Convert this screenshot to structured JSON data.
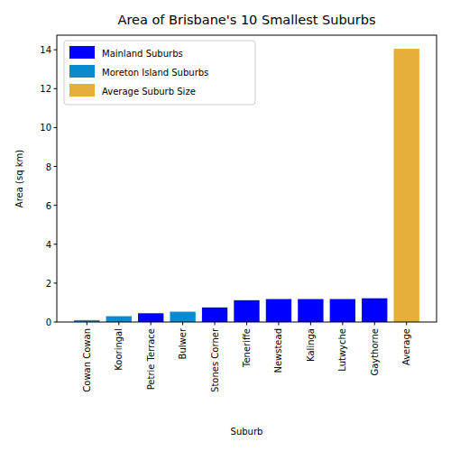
{
  "chart_data": {
    "type": "bar",
    "title": "Area of Brisbane's 10 Smallest Suburbs",
    "x_label": "Suburb",
    "y_label": "Area (sq km)",
    "categories": [
      "Cowan Cowan",
      "Kooringal",
      "Petrie Terrace",
      "Bulwer",
      "Stones Corner",
      "Teneriffe",
      "Newstead",
      "Kalinga",
      "Lutwyche",
      "Gaythorne",
      "Average"
    ],
    "series": [
      {
        "name": "Mainland Suburbs",
        "color": "#0000ff",
        "values": [
          null,
          null,
          0.45,
          null,
          0.75,
          1.12,
          1.18,
          1.18,
          1.18,
          1.22,
          null
        ]
      },
      {
        "name": "Moreton Island Suburbs",
        "color": "#0a8ad0",
        "values": [
          0.1,
          0.3,
          null,
          0.53,
          null,
          null,
          null,
          null,
          null,
          null,
          null
        ]
      },
      {
        "name": "Average Suburb Size",
        "color": "#e5ae38",
        "values": [
          null,
          null,
          null,
          null,
          null,
          null,
          null,
          null,
          null,
          null,
          14.05
        ]
      }
    ],
    "ylim": [
      0,
      14.75
    ],
    "yticks": [
      0,
      2,
      4,
      6,
      8,
      10,
      12,
      14
    ],
    "legend": "upper left"
  }
}
